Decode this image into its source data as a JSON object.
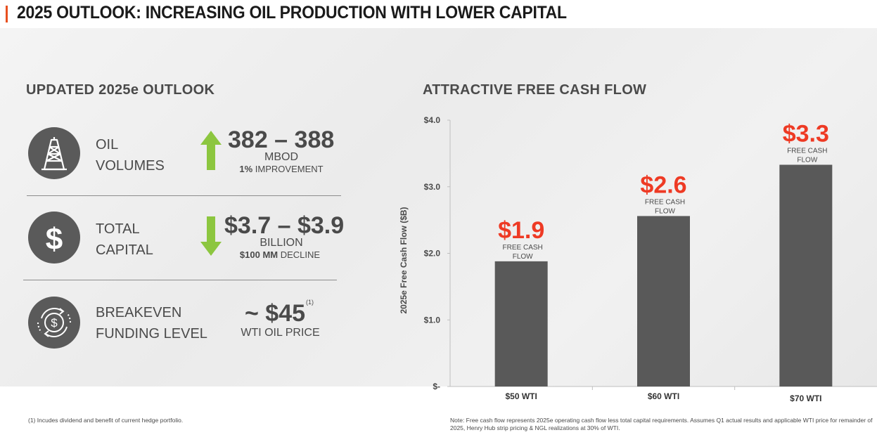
{
  "page": {
    "title": "2025 OUTLOOK: INCREASING OIL PRODUCTION WITH LOWER CAPITAL"
  },
  "outlook": {
    "heading": "UPDATED 2025e OUTLOOK",
    "rows": [
      {
        "icon": "oil-derrick-icon",
        "label_line1": "OIL",
        "label_line2": "VOLUMES",
        "direction": "up",
        "value": "382 – 388",
        "unit": "MBOD",
        "sub_bold": "1%",
        "sub_text": " IMPROVEMENT"
      },
      {
        "icon": "dollar-icon",
        "label_line1": "TOTAL",
        "label_line2": "CAPITAL",
        "direction": "down",
        "value": "$3.7 – $3.9",
        "unit": "BILLION",
        "sub_bold": "$100 MM",
        "sub_text": " DECLINE"
      },
      {
        "icon": "dollar-cycle-icon",
        "label_line1": "BREAKEVEN",
        "label_line2": "FUNDING LEVEL",
        "value": "~ $45",
        "superscript": "(1)",
        "unit": "WTI OIL PRICE"
      }
    ],
    "footnote": "(1) Incudes dividend and benefit of current hedge portfolio."
  },
  "colors": {
    "accent_orange": "#e8501f",
    "value_red": "#ee3a24",
    "arrow_green": "#8cc63f",
    "bar_gray": "#595959",
    "icon_gray": "#5a5a5a"
  },
  "chart_data": {
    "type": "bar",
    "title": "ATTRACTIVE FREE CASH FLOW",
    "ylabel": "2025e Free Cash Flow ($B)",
    "xlabel": "",
    "ylim": [
      0,
      4
    ],
    "yticks": [
      0,
      1,
      2,
      3,
      4
    ],
    "ytick_labels": [
      "$-",
      "$1.0",
      "$2.0",
      "$3.0",
      "$4.0"
    ],
    "grid": false,
    "categories": [
      "$50 WTI",
      "$60 WTI",
      "$70 WTI"
    ],
    "values": [
      1.88,
      2.56,
      3.33
    ],
    "data_labels": [
      "$1.9",
      "$2.6",
      "$3.3"
    ],
    "bar_annotation_line1": "FREE CASH",
    "bar_annotation_line2": "FLOW",
    "note": "Note: Free cash flow represents 2025e operating cash flow less total capital requirements. Assumes Q1 actual results and applicable WTI price for remainder of 2025, Henry Hub strip pricing & NGL realizations at 30% of WTI."
  }
}
